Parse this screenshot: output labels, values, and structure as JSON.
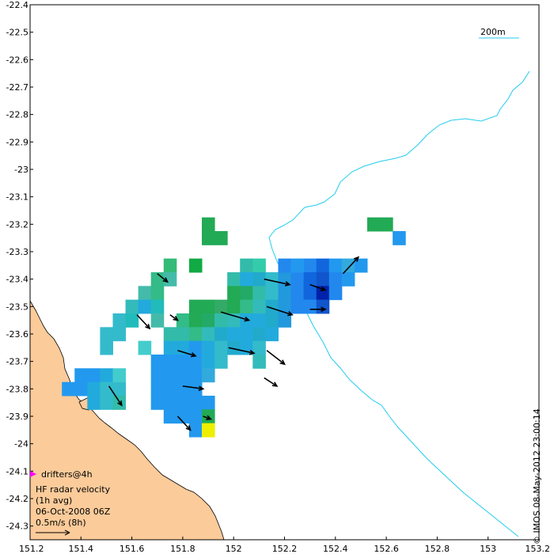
{
  "chart_data": {
    "type": "map",
    "xlim": [
      151.2,
      153.2
    ],
    "ylim": [
      -24.35,
      -22.4
    ],
    "x_ticks": [
      "151.2",
      "151.4",
      "151.6",
      "151.8",
      "152",
      "152.2",
      "152.4",
      "152.6",
      "152.8",
      "153",
      "153.2"
    ],
    "y_ticks": [
      "-22.4",
      "-22.5",
      "-22.6",
      "-22.7",
      "-22.8",
      "-22.9",
      "-23",
      "-23.1",
      "-23.2",
      "-23.3",
      "-23.4",
      "-23.5",
      "-23.6",
      "-23.7",
      "-23.8",
      "-23.9",
      "-24",
      "-24.1",
      "-24.2",
      "-24.3"
    ],
    "bathymetry_label": "200m",
    "legend": {
      "drifters": "drifters@4h",
      "title": "HF radar velocity",
      "avg": "(1h avg)",
      "date": "06-Oct-2008 06Z",
      "scale": "0.5m/s (8h)"
    },
    "credit": "© IMOS 08-May-2012 23:00:14",
    "colors": {
      "land": "#fbcb9a",
      "contour": "#22ccee",
      "arrow": "#000000",
      "drifter": "#ff00ff"
    },
    "radar_cells": [
      {
        "lon": 151.9,
        "lat": -23.25,
        "color": "#22aa55"
      },
      {
        "lon": 151.95,
        "lat": -23.25,
        "color": "#22aa55"
      },
      {
        "lon": 151.9,
        "lat": -23.2,
        "color": "#22aa55"
      },
      {
        "lon": 152.55,
        "lat": -23.2,
        "color": "#22aa55"
      },
      {
        "lon": 152.6,
        "lat": -23.2,
        "color": "#22aa55"
      },
      {
        "lon": 152.65,
        "lat": -23.25,
        "color": "#2299ee"
      },
      {
        "lon": 151.75,
        "lat": -23.35,
        "color": "#33bb77"
      },
      {
        "lon": 151.85,
        "lat": -23.35,
        "color": "#11aa44"
      },
      {
        "lon": 151.7,
        "lat": -23.4,
        "color": "#33bb88"
      },
      {
        "lon": 151.75,
        "lat": -23.4,
        "color": "#44bbaa"
      },
      {
        "lon": 151.65,
        "lat": -23.45,
        "color": "#44bbaa"
      },
      {
        "lon": 151.7,
        "lat": -23.45,
        "color": "#33bb88"
      },
      {
        "lon": 151.6,
        "lat": -23.5,
        "color": "#33bbbb"
      },
      {
        "lon": 151.65,
        "lat": -23.5,
        "color": "#22aadd"
      },
      {
        "lon": 151.7,
        "lat": -23.5,
        "color": "#22bbbb"
      },
      {
        "lon": 151.55,
        "lat": -23.55,
        "color": "#33bbcc"
      },
      {
        "lon": 151.6,
        "lat": -23.55,
        "color": "#22bbbb"
      },
      {
        "lon": 151.7,
        "lat": -23.55,
        "color": "#44bbaa"
      },
      {
        "lon": 151.5,
        "lat": -23.6,
        "color": "#33bbcc"
      },
      {
        "lon": 151.55,
        "lat": -23.6,
        "color": "#33bbcc"
      },
      {
        "lon": 151.5,
        "lat": -23.65,
        "color": "#33bbcc"
      },
      {
        "lon": 151.65,
        "lat": -23.65,
        "color": "#44cccc"
      },
      {
        "lon": 152.05,
        "lat": -23.35,
        "color": "#33bbaa"
      },
      {
        "lon": 152.1,
        "lat": -23.35,
        "color": "#33ccaa"
      },
      {
        "lon": 152.0,
        "lat": -23.4,
        "color": "#33bbaa"
      },
      {
        "lon": 152.05,
        "lat": -23.4,
        "color": "#22aadd"
      },
      {
        "lon": 152.1,
        "lat": -23.4,
        "color": "#22aacc"
      },
      {
        "lon": 152.15,
        "lat": -23.4,
        "color": "#33bbcc"
      },
      {
        "lon": 152.2,
        "lat": -23.4,
        "color": "#2299dd"
      },
      {
        "lon": 152.25,
        "lat": -23.4,
        "color": "#2288ee"
      },
      {
        "lon": 152.0,
        "lat": -23.45,
        "color": "#22aa55"
      },
      {
        "lon": 152.05,
        "lat": -23.45,
        "color": "#22aa66"
      },
      {
        "lon": 152.1,
        "lat": -23.45,
        "color": "#33bbaa"
      },
      {
        "lon": 152.15,
        "lat": -23.45,
        "color": "#33bbcc"
      },
      {
        "lon": 152.2,
        "lat": -23.45,
        "color": "#2299dd"
      },
      {
        "lon": 152.25,
        "lat": -23.45,
        "color": "#2288ee"
      },
      {
        "lon": 151.85,
        "lat": -23.5,
        "color": "#22aa55"
      },
      {
        "lon": 151.9,
        "lat": -23.5,
        "color": "#22aa55"
      },
      {
        "lon": 151.95,
        "lat": -23.5,
        "color": "#33aa66"
      },
      {
        "lon": 152.0,
        "lat": -23.5,
        "color": "#22aa55"
      },
      {
        "lon": 152.05,
        "lat": -23.5,
        "color": "#33bb88"
      },
      {
        "lon": 152.1,
        "lat": -23.5,
        "color": "#33bbbb"
      },
      {
        "lon": 152.15,
        "lat": -23.5,
        "color": "#22aacc"
      },
      {
        "lon": 152.2,
        "lat": -23.5,
        "color": "#2299dd"
      },
      {
        "lon": 152.25,
        "lat": -23.5,
        "color": "#2288ee"
      },
      {
        "lon": 151.8,
        "lat": -23.55,
        "color": "#33bb88"
      },
      {
        "lon": 151.85,
        "lat": -23.55,
        "color": "#22aa55"
      },
      {
        "lon": 151.9,
        "lat": -23.55,
        "color": "#22aa66"
      },
      {
        "lon": 151.95,
        "lat": -23.55,
        "color": "#33bbaa"
      },
      {
        "lon": 152.0,
        "lat": -23.55,
        "color": "#33bbbb"
      },
      {
        "lon": 152.05,
        "lat": -23.55,
        "color": "#22aadd"
      },
      {
        "lon": 152.1,
        "lat": -23.55,
        "color": "#22aadd"
      },
      {
        "lon": 152.15,
        "lat": -23.55,
        "color": "#22aacc"
      },
      {
        "lon": 152.2,
        "lat": -23.55,
        "color": "#2299dd"
      },
      {
        "lon": 151.75,
        "lat": -23.6,
        "color": "#33bbaa"
      },
      {
        "lon": 151.8,
        "lat": -23.6,
        "color": "#33bbaa"
      },
      {
        "lon": 151.85,
        "lat": -23.6,
        "color": "#33bb88"
      },
      {
        "lon": 151.9,
        "lat": -23.6,
        "color": "#33bbbb"
      },
      {
        "lon": 151.95,
        "lat": -23.6,
        "color": "#22aacc"
      },
      {
        "lon": 152.0,
        "lat": -23.6,
        "color": "#22aadd"
      },
      {
        "lon": 152.05,
        "lat": -23.6,
        "color": "#22aadd"
      },
      {
        "lon": 152.1,
        "lat": -23.6,
        "color": "#22aacc"
      },
      {
        "lon": 152.15,
        "lat": -23.6,
        "color": "#22aadd"
      },
      {
        "lon": 151.75,
        "lat": -23.65,
        "color": "#22aadd"
      },
      {
        "lon": 151.8,
        "lat": -23.65,
        "color": "#22aadd"
      },
      {
        "lon": 151.85,
        "lat": -23.65,
        "color": "#2299ee"
      },
      {
        "lon": 151.9,
        "lat": -23.65,
        "color": "#22aadd"
      },
      {
        "lon": 151.95,
        "lat": -23.65,
        "color": "#33bbcc"
      },
      {
        "lon": 152.0,
        "lat": -23.65,
        "color": "#22aacc"
      },
      {
        "lon": 152.05,
        "lat": -23.65,
        "color": "#22aadd"
      },
      {
        "lon": 152.1,
        "lat": -23.65,
        "color": "#33bbcc"
      },
      {
        "lon": 151.7,
        "lat": -23.7,
        "color": "#2299ee"
      },
      {
        "lon": 151.75,
        "lat": -23.7,
        "color": "#2299ee"
      },
      {
        "lon": 151.8,
        "lat": -23.7,
        "color": "#2299ee"
      },
      {
        "lon": 151.85,
        "lat": -23.7,
        "color": "#2299ee"
      },
      {
        "lon": 151.9,
        "lat": -23.7,
        "color": "#22aadd"
      },
      {
        "lon": 151.95,
        "lat": -23.7,
        "color": "#33bbcc"
      },
      {
        "lon": 152.1,
        "lat": -23.7,
        "color": "#33bbbb"
      },
      {
        "lon": 151.7,
        "lat": -23.75,
        "color": "#2299ee"
      },
      {
        "lon": 151.75,
        "lat": -23.75,
        "color": "#2299ee"
      },
      {
        "lon": 151.8,
        "lat": -23.75,
        "color": "#2299ee"
      },
      {
        "lon": 151.85,
        "lat": -23.75,
        "color": "#2299ee"
      },
      {
        "lon": 151.9,
        "lat": -23.75,
        "color": "#33aadd"
      },
      {
        "lon": 151.7,
        "lat": -23.8,
        "color": "#2299ee"
      },
      {
        "lon": 151.75,
        "lat": -23.8,
        "color": "#2299ee"
      },
      {
        "lon": 151.8,
        "lat": -23.8,
        "color": "#2299ee"
      },
      {
        "lon": 151.85,
        "lat": -23.8,
        "color": "#2299ee"
      },
      {
        "lon": 151.7,
        "lat": -23.85,
        "color": "#2299ee"
      },
      {
        "lon": 151.75,
        "lat": -23.85,
        "color": "#2299ee"
      },
      {
        "lon": 151.8,
        "lat": -23.85,
        "color": "#2299ee"
      },
      {
        "lon": 151.85,
        "lat": -23.85,
        "color": "#2299ee"
      },
      {
        "lon": 151.9,
        "lat": -23.85,
        "color": "#2299ee"
      },
      {
        "lon": 151.75,
        "lat": -23.9,
        "color": "#2299ee"
      },
      {
        "lon": 151.8,
        "lat": -23.9,
        "color": "#2299ee"
      },
      {
        "lon": 151.85,
        "lat": -23.9,
        "color": "#2299ee"
      },
      {
        "lon": 151.9,
        "lat": -23.9,
        "color": "#22aa55"
      },
      {
        "lon": 151.85,
        "lat": -23.95,
        "color": "#2299ee"
      },
      {
        "lon": 151.9,
        "lat": -23.95,
        "color": "#eeee00"
      },
      {
        "lon": 151.4,
        "lat": -23.75,
        "color": "#2299ee"
      },
      {
        "lon": 151.45,
        "lat": -23.75,
        "color": "#2299ee"
      },
      {
        "lon": 151.5,
        "lat": -23.75,
        "color": "#22aadd"
      },
      {
        "lon": 151.35,
        "lat": -23.8,
        "color": "#2299ee"
      },
      {
        "lon": 151.4,
        "lat": -23.8,
        "color": "#2299ee"
      },
      {
        "lon": 151.45,
        "lat": -23.8,
        "color": "#22aadd"
      },
      {
        "lon": 151.5,
        "lat": -23.8,
        "color": "#33bbcc"
      },
      {
        "lon": 151.55,
        "lat": -23.8,
        "color": "#33bbcc"
      },
      {
        "lon": 151.45,
        "lat": -23.85,
        "color": "#22aadd"
      },
      {
        "lon": 151.5,
        "lat": -23.85,
        "color": "#33bbcc"
      },
      {
        "lon": 151.55,
        "lat": -23.85,
        "color": "#33bbaa"
      },
      {
        "lon": 151.55,
        "lat": -23.75,
        "color": "#44cccc"
      },
      {
        "lon": 152.3,
        "lat": -23.35,
        "color": "#2288ee"
      },
      {
        "lon": 152.35,
        "lat": -23.35,
        "color": "#1166dd"
      },
      {
        "lon": 152.4,
        "lat": -23.35,
        "color": "#2299ee"
      },
      {
        "lon": 152.45,
        "lat": -23.35,
        "color": "#33aadd"
      },
      {
        "lon": 152.5,
        "lat": -23.35,
        "color": "#2299ee"
      },
      {
        "lon": 152.3,
        "lat": -23.4,
        "color": "#1166dd"
      },
      {
        "lon": 152.35,
        "lat": -23.4,
        "color": "#1155cc"
      },
      {
        "lon": 152.4,
        "lat": -23.4,
        "color": "#2288ee"
      },
      {
        "lon": 152.45,
        "lat": -23.4,
        "color": "#2299ee"
      },
      {
        "lon": 152.3,
        "lat": -23.45,
        "color": "#1166dd"
      },
      {
        "lon": 152.35,
        "lat": -23.45,
        "color": "#0022aa"
      },
      {
        "lon": 152.4,
        "lat": -23.45,
        "color": "#2288ee"
      },
      {
        "lon": 152.3,
        "lat": -23.5,
        "color": "#2288ee"
      },
      {
        "lon": 152.35,
        "lat": -23.5,
        "color": "#1155cc"
      },
      {
        "lon": 152.2,
        "lat": -23.35,
        "color": "#2288ee"
      },
      {
        "lon": 152.25,
        "lat": -23.35,
        "color": "#2299ee"
      }
    ],
    "arrows": [
      {
        "lon": 151.7,
        "lat": -23.38,
        "u": 0.04,
        "v": -0.03
      },
      {
        "lon": 151.62,
        "lat": -23.53,
        "u": 0.05,
        "v": -0.05
      },
      {
        "lon": 151.75,
        "lat": -23.53,
        "u": 0.03,
        "v": -0.02
      },
      {
        "lon": 151.95,
        "lat": -23.52,
        "u": 0.11,
        "v": -0.03
      },
      {
        "lon": 152.12,
        "lat": -23.4,
        "u": 0.1,
        "v": -0.02
      },
      {
        "lon": 152.13,
        "lat": -23.5,
        "u": 0.1,
        "v": -0.03
      },
      {
        "lon": 152.3,
        "lat": -23.42,
        "u": 0.06,
        "v": -0.02
      },
      {
        "lon": 152.43,
        "lat": -23.38,
        "u": 0.06,
        "v": 0.06
      },
      {
        "lon": 152.3,
        "lat": -23.51,
        "u": 0.06,
        "v": 0.0
      },
      {
        "lon": 151.78,
        "lat": -23.66,
        "u": 0.07,
        "v": -0.02
      },
      {
        "lon": 151.98,
        "lat": -23.65,
        "u": 0.1,
        "v": -0.02
      },
      {
        "lon": 152.13,
        "lat": -23.66,
        "u": 0.07,
        "v": -0.05
      },
      {
        "lon": 151.8,
        "lat": -23.79,
        "u": 0.08,
        "v": -0.01
      },
      {
        "lon": 151.51,
        "lat": -23.79,
        "u": 0.05,
        "v": -0.07
      },
      {
        "lon": 151.78,
        "lat": -23.9,
        "u": 0.05,
        "v": -0.05
      },
      {
        "lon": 152.12,
        "lat": -23.76,
        "u": 0.05,
        "v": -0.03
      },
      {
        "lon": 151.88,
        "lat": -23.9,
        "u": 0.03,
        "v": -0.01
      }
    ],
    "drifter": {
      "lon": 151.21,
      "lat": -24.12
    }
  }
}
